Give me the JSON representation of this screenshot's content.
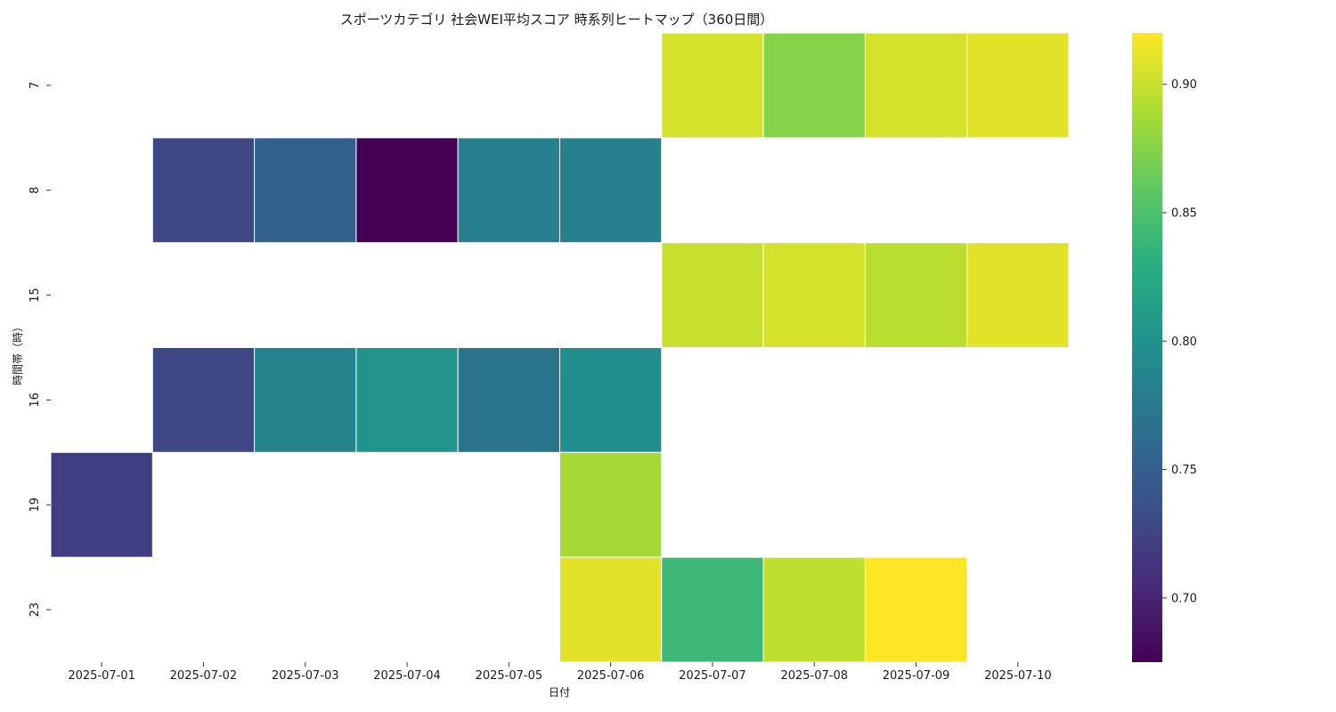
{
  "chart_data": {
    "type": "heatmap",
    "title": "スポーツカテゴリ 社会WEI平均スコア 時系列ヒートマップ（360日間）",
    "xlabel": "日付",
    "ylabel": "時間帯（時）",
    "x_categories": [
      "2025-07-01",
      "2025-07-02",
      "2025-07-03",
      "2025-07-04",
      "2025-07-05",
      "2025-07-06",
      "2025-07-07",
      "2025-07-08",
      "2025-07-09",
      "2025-07-10"
    ],
    "y_categories": [
      "7",
      "8",
      "15",
      "16",
      "19",
      "23"
    ],
    "values": [
      [
        null,
        null,
        null,
        null,
        null,
        null,
        0.905,
        0.875,
        0.905,
        0.91
      ],
      [
        null,
        0.727,
        0.752,
        0.675,
        0.782,
        0.782,
        null,
        null,
        null,
        null
      ],
      [
        null,
        null,
        null,
        null,
        null,
        null,
        0.9,
        0.905,
        0.895,
        0.91
      ],
      [
        null,
        0.727,
        0.785,
        0.802,
        0.77,
        0.795,
        null,
        null,
        null,
        null
      ],
      [
        0.72,
        null,
        null,
        null,
        null,
        0.887,
        null,
        null,
        null,
        null
      ],
      [
        null,
        null,
        null,
        null,
        null,
        0.91,
        0.84,
        0.897,
        0.92,
        null
      ]
    ],
    "colormap": "viridis",
    "colorbar": {
      "range": [
        0.675,
        0.92
      ],
      "ticks": [
        "0.70",
        "0.75",
        "0.80",
        "0.85",
        "0.90"
      ]
    },
    "grid": false
  }
}
